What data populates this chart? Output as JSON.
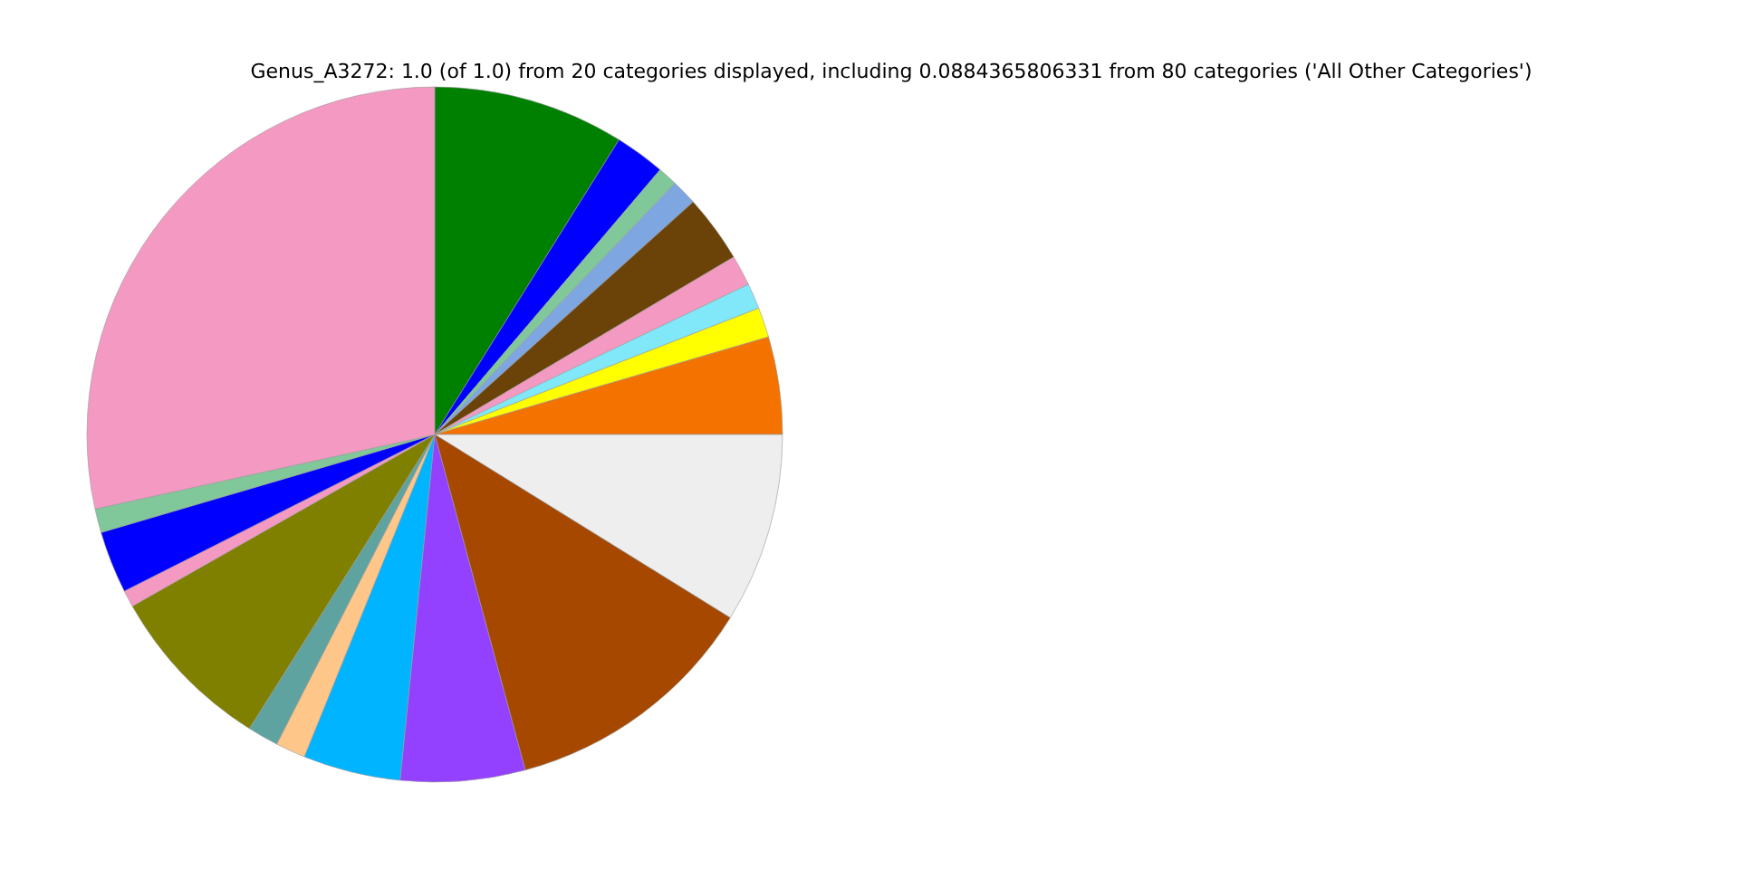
{
  "chart_data": {
    "type": "pie",
    "title": "Genus_A3272: 1.0 (of 1.0) from 20 categories displayed, including 0.0884365806331 from 80 categories ('All Other Categories')",
    "categories": [
      null,
      null,
      null,
      null,
      null,
      null,
      null,
      null,
      null,
      null,
      null,
      null,
      null,
      null,
      null,
      null,
      null,
      null,
      null,
      null
    ],
    "values": [
      8.89,
      2.33,
      0.92,
      1.19,
      3.14,
      1.42,
      1.19,
      1.39,
      4.53,
      8.84,
      11.97,
      5.78,
      4.53,
      1.39,
      1.44,
      7.83,
      0.78,
      2.89,
      1.11,
      28.44
    ],
    "colors": [
      "#008000",
      "#0000ff",
      "#80c89a",
      "#7ea6e0",
      "#6b4309",
      "#f49ac2",
      "#80e8f8",
      "#ffff00",
      "#f47300",
      "#eeeeee",
      "#a64800",
      "#9340ff",
      "#00b4ff",
      "#ffc68a",
      "#5fa3a0",
      "#7f7f00",
      "#f49ac2",
      "#0000ff",
      "#80c89a",
      "#f49ac2"
    ]
  }
}
